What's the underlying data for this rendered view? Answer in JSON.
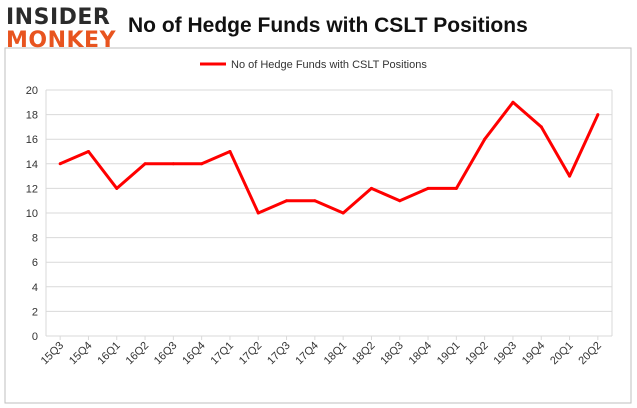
{
  "logo": {
    "line1": "INSIDER",
    "line2": "MONKEY"
  },
  "chart_data": {
    "type": "line",
    "title": "No of Hedge Funds with CSLT Positions",
    "xlabel": "",
    "ylabel": "",
    "categories": [
      "15Q3",
      "15Q4",
      "16Q1",
      "16Q2",
      "16Q3",
      "16Q4",
      "17Q1",
      "17Q2",
      "17Q3",
      "17Q4",
      "18Q1",
      "18Q2",
      "18Q3",
      "18Q4",
      "19Q1",
      "19Q2",
      "19Q3",
      "19Q4",
      "20Q1",
      "20Q2"
    ],
    "series": [
      {
        "name": "No of Hedge Funds with CSLT Positions",
        "values": [
          14,
          15,
          12,
          14,
          14,
          14,
          15,
          10,
          11,
          11,
          10,
          12,
          11,
          12,
          12,
          16,
          19,
          17,
          13,
          18
        ]
      }
    ],
    "ylim": [
      0,
      20
    ],
    "yticks": [
      0,
      2,
      4,
      6,
      8,
      10,
      12,
      14,
      16,
      18,
      20
    ],
    "grid": true,
    "legend": "top-center",
    "colors": {
      "line": "#ff0000",
      "grid": "#d9d9d9",
      "frame": "#bfbfbf"
    }
  }
}
